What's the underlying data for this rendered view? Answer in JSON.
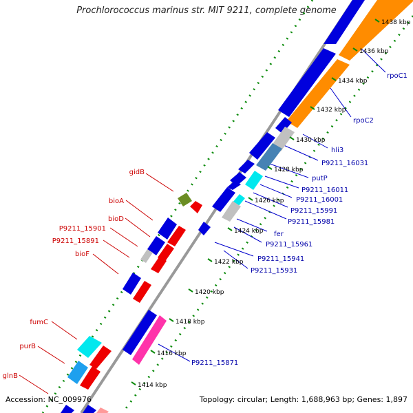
{
  "title": "Prochlorococcus marinus str. MIT 9211, complete genome",
  "accession": "Accession: NC_009976",
  "summary": "Topology: circular; Length: 1,688,963 bp; Genes: 1,897",
  "colors": {
    "forward_cds": "#0000dd",
    "reverse_cds": "#ee0000",
    "rna": "#00e8ee",
    "rrna": "#ff8c00",
    "misc": "#c0c0c0",
    "pink": "#ff33aa",
    "olive": "#6b8e23",
    "steel": "#4682b4",
    "backbone": "#999999",
    "dots": "#0a8a0a",
    "label_reverse": "#cc0000",
    "label_forward": "#0000aa"
  },
  "ticks": [
    "1438 kbp",
    "1436 kbp",
    "1434 kbp",
    "1432 kbp",
    "1430 kbp",
    "1428 kbp",
    "1426 kbp",
    "1424 kbp",
    "1422 kbp",
    "1420 kbp",
    "1418 kbp",
    "1416 kbp",
    "1414 kbp"
  ],
  "labels_forward": [
    "rpoC1",
    "rpoC2",
    "hli3",
    "P9211_16031",
    "putP",
    "P9211_16011",
    "P9211_16001",
    "P9211_15991",
    "P9211_15981",
    "fer",
    "P9211_15961",
    "P9211_15941",
    "P9211_15931",
    "P9211_15871"
  ],
  "labels_reverse": [
    "gidB",
    "bioA",
    "bioD",
    "P9211_15901",
    "P9211_15891",
    "bioF",
    "fumC",
    "purB",
    "glnB"
  ]
}
